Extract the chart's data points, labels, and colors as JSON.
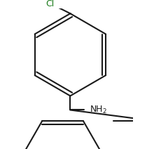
{
  "bg_color": "#ffffff",
  "line_color": "#1a1a1a",
  "line_width": 1.5,
  "text_color": "#1a1a1a",
  "cl_color": "#1a7a1a",
  "nh2_color": "#1a1a1a",
  "font_size": 9
}
